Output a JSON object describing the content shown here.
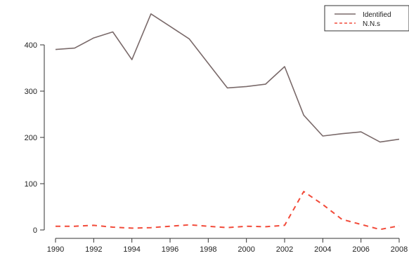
{
  "chart_data": {
    "type": "line",
    "title": "",
    "xlabel": "",
    "ylabel": "",
    "x": [
      1990,
      1991,
      1992,
      1993,
      1994,
      1995,
      1996,
      1997,
      1998,
      1999,
      2000,
      2001,
      2002,
      2003,
      2004,
      2005,
      2006,
      2007,
      2008
    ],
    "xlim": [
      1990,
      2008
    ],
    "ylim": [
      0,
      470
    ],
    "x_ticks": [
      "1990",
      "1992",
      "1994",
      "1996",
      "1998",
      "2000",
      "2002",
      "2004",
      "2006",
      "2008"
    ],
    "y_ticks": [
      "0",
      "100",
      "200",
      "300",
      "400"
    ],
    "grid": false,
    "legend_position": "top-right",
    "series": [
      {
        "name": "Identified",
        "color": "#7a6a6a",
        "line_style": "solid",
        "values": [
          390,
          393,
          415,
          428,
          368,
          467,
          440,
          413,
          360,
          307,
          310,
          315,
          353,
          248,
          203,
          208,
          212,
          190,
          196
        ]
      },
      {
        "name": "N.N.s",
        "color": "#f24b3a",
        "line_style": "dashed",
        "values": [
          8,
          8,
          10,
          6,
          4,
          5,
          8,
          11,
          8,
          5,
          8,
          7,
          10,
          83,
          55,
          23,
          12,
          1,
          9
        ]
      }
    ]
  }
}
